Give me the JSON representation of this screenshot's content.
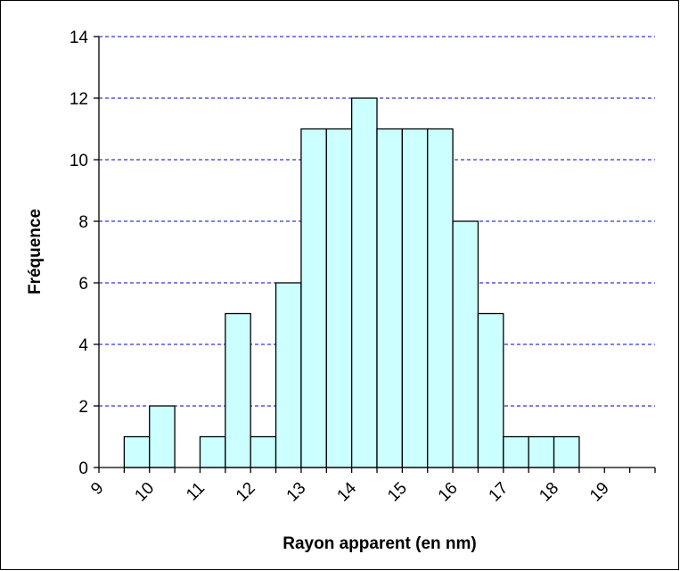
{
  "chart_data": {
    "type": "bar",
    "title": "",
    "xlabel": "Rayon apparent (en nm)",
    "ylabel": "Fréquence",
    "x_tick_labels": [
      "9",
      "10",
      "11",
      "12",
      "13",
      "14",
      "15",
      "16",
      "17",
      "18",
      "19"
    ],
    "xlim": [
      9,
      20
    ],
    "y_ticks": [
      0,
      2,
      4,
      6,
      8,
      10,
      12,
      14
    ],
    "ylim": [
      0,
      14
    ],
    "bin_width": 0.5,
    "bins": [
      {
        "start": 9.5,
        "value": 1
      },
      {
        "start": 10.0,
        "value": 2
      },
      {
        "start": 10.5,
        "value": 0
      },
      {
        "start": 11.0,
        "value": 1
      },
      {
        "start": 11.5,
        "value": 5
      },
      {
        "start": 12.0,
        "value": 1
      },
      {
        "start": 12.5,
        "value": 6
      },
      {
        "start": 13.0,
        "value": 11
      },
      {
        "start": 13.5,
        "value": 11
      },
      {
        "start": 14.0,
        "value": 12
      },
      {
        "start": 14.5,
        "value": 11
      },
      {
        "start": 15.0,
        "value": 11
      },
      {
        "start": 15.5,
        "value": 11
      },
      {
        "start": 16.0,
        "value": 8
      },
      {
        "start": 16.5,
        "value": 5
      },
      {
        "start": 17.0,
        "value": 1
      },
      {
        "start": 17.5,
        "value": 1
      },
      {
        "start": 18.0,
        "value": 1
      }
    ],
    "grid": true,
    "bar_color": "#CCFFFF",
    "bar_edge_color": "#000000",
    "grid_color": "#0000CC"
  }
}
